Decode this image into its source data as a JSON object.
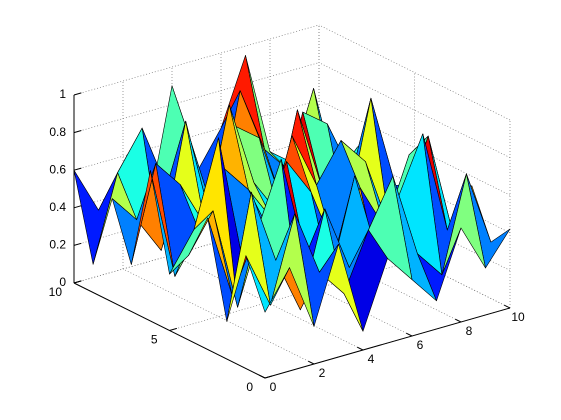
{
  "chart_data": {
    "type": "surface",
    "colormap": "jet",
    "grid": true,
    "x": [
      0,
      1,
      2,
      3,
      4,
      5,
      6,
      7,
      8,
      9,
      10
    ],
    "y": [
      0,
      1,
      2,
      3,
      4,
      5,
      6,
      7,
      8,
      9,
      10
    ],
    "z": [
      [
        0.35,
        0.55,
        0.2,
        0.6,
        0.1,
        0.45,
        0.3,
        0.15,
        0.5,
        0.25,
        0.42
      ],
      [
        0.6,
        0.3,
        0.75,
        0.4,
        0.25,
        0.55,
        0.8,
        0.35,
        0.2,
        0.7,
        0.3
      ],
      [
        0.2,
        0.85,
        0.45,
        0.15,
        0.65,
        0.3,
        0.4,
        0.6,
        0.9,
        0.35,
        0.55
      ],
      [
        0.7,
        0.25,
        0.55,
        0.9,
        0.35,
        0.2,
        0.7,
        0.15,
        0.45,
        0.8,
        0.25
      ],
      [
        0.45,
        0.65,
        0.1,
        0.5,
        0.8,
        0.6,
        0.25,
        0.55,
        0.3,
        0.65,
        0.5
      ],
      [
        0.3,
        0.5,
        0.95,
        0.25,
        0.4,
        0.85,
        0.55,
        0.75,
        0.6,
        0.2,
        0.4
      ],
      [
        0.8,
        0.2,
        0.4,
        0.7,
        0.55,
        0.35,
        0.9,
        0.45,
        0.25,
        0.85,
        0.35
      ],
      [
        0.25,
        0.75,
        0.6,
        0.35,
        0.95,
        0.5,
        0.3,
        0.8,
        0.7,
        0.4,
        0.6
      ],
      [
        0.55,
        0.4,
        0.2,
        0.85,
        0.3,
        0.75,
        0.65,
        0.25,
        0.55,
        0.3,
        0.45
      ],
      [
        0.15,
        0.6,
        0.8,
        0.45,
        0.65,
        0.2,
        0.85,
        0.5,
        0.35,
        0.75,
        0.2
      ],
      [
        0.6,
        0.35,
        0.55,
        0.25,
        0.9,
        0.4,
        0.6,
        0.95,
        0.4,
        0.3,
        0.55
      ]
    ],
    "xlim": [
      0,
      10
    ],
    "ylim": [
      0,
      10
    ],
    "zlim": [
      0,
      1
    ],
    "xticks": [
      0,
      2,
      4,
      6,
      8,
      10
    ],
    "yticks": [
      0,
      5,
      10
    ],
    "zticks": [
      0,
      0.2,
      0.4,
      0.6,
      0.8,
      1
    ]
  }
}
